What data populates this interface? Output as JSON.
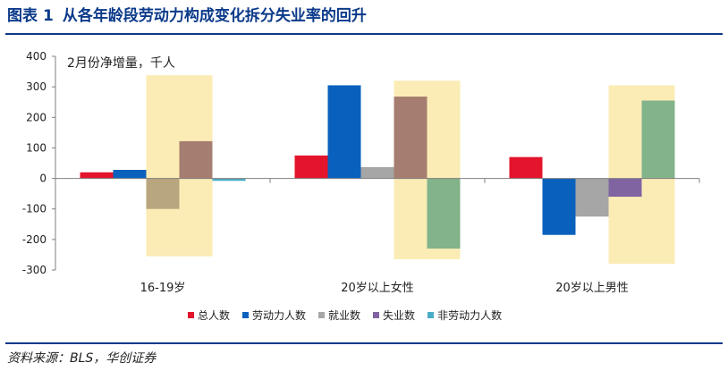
{
  "header": {
    "figure_label": "图表",
    "figure_number": "1",
    "title": "从各年龄段劳动力构成变化拆分失业率的回升"
  },
  "footer": {
    "source": "资料来源：BLS，华创证券"
  },
  "colors": {
    "accent": "#0b3a8a",
    "highlight": "#fbecb5"
  },
  "chart_data": {
    "type": "bar",
    "annotation": "2月份净增量，千人",
    "categories": [
      "16-19岁",
      "20岁以上女性",
      "20岁以上男性"
    ],
    "ylim": [
      -300,
      400
    ],
    "yticks": [
      -300,
      -200,
      -100,
      0,
      100,
      200,
      300,
      400
    ],
    "grid": false,
    "legend_position": "bottom",
    "series": [
      {
        "name": "总人数",
        "color": "#e3142b",
        "values": [
          20,
          75,
          70
        ]
      },
      {
        "name": "劳动力人数",
        "color": "#0a61bd",
        "values": [
          28,
          305,
          -185
        ]
      },
      {
        "name": "就业数",
        "color": "#a6a6a6",
        "values": [
          -100,
          37,
          -125
        ]
      },
      {
        "name": "失业数",
        "color": "#8064a2",
        "values": [
          122,
          268,
          -60
        ]
      },
      {
        "name": "非劳动力人数",
        "color": "#4bacc6",
        "values": [
          -8,
          -230,
          255
        ]
      }
    ],
    "highlight_bands": [
      {
        "category": "16-19岁",
        "series_from": "就业数",
        "series_to": "失业数",
        "range": [
          -255,
          338
        ]
      },
      {
        "category": "20岁以上女性",
        "series_from": "失业数",
        "series_to": "非劳动力人数",
        "range": [
          -265,
          320
        ]
      },
      {
        "category": "20岁以上男性",
        "series_from": "失业数",
        "series_to": "非劳动力人数",
        "range": [
          -280,
          305
        ]
      }
    ],
    "bar_colors_override": {
      "16-19岁": {
        "就业数": "#b8a67e",
        "失业数": "#a67d71"
      },
      "20岁以上女性": {
        "失业数": "#a67d71",
        "非劳动力人数": "#82b38a"
      },
      "20岁以上男性": {
        "失业数": "#8064a2",
        "非劳动力人数": "#82b38a"
      }
    }
  }
}
